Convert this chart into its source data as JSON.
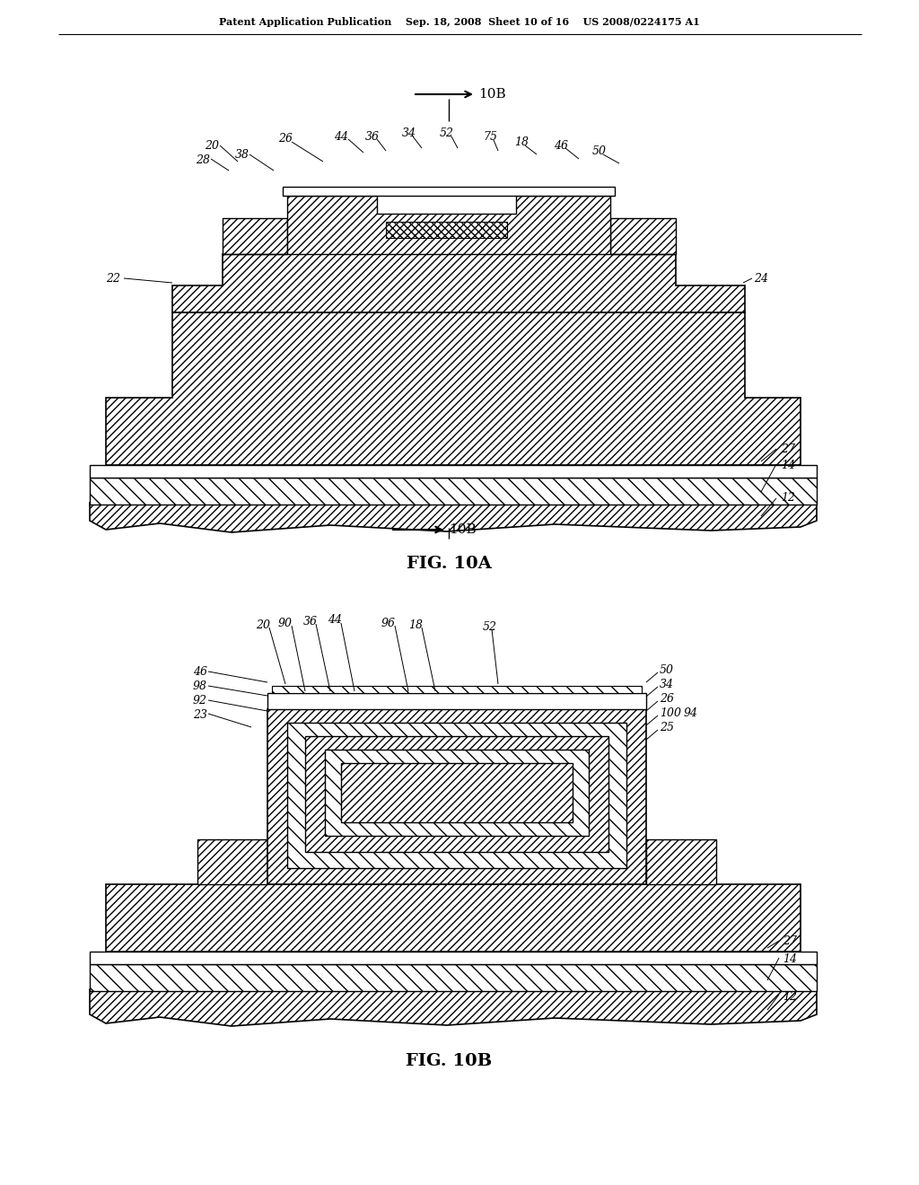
{
  "header": "Patent Application Publication    Sep. 18, 2008  Sheet 10 of 16    US 2008/0224175 A1",
  "fig_10a_label": "FIG. 10A",
  "fig_10b_label": "FIG. 10B",
  "bg_color": "#ffffff",
  "lc": "#000000"
}
